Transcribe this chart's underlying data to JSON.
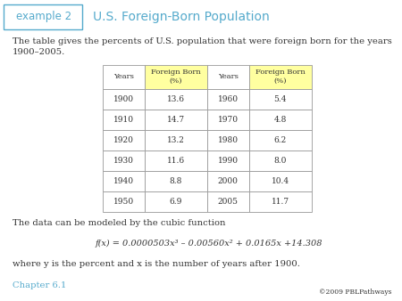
{
  "title": "U.S. Foreign-Born Population",
  "example_label": "example 2",
  "intro_text": "The table gives the percents of U.S. population that were foreign born for the years\n1900–2005.",
  "table_headers": [
    "Years",
    "Foreign Born\n(%)",
    "Years",
    "Foreign Born\n(%)"
  ],
  "table_data": [
    [
      "1900",
      "13.6",
      "1960",
      "5.4"
    ],
    [
      "1910",
      "14.7",
      "1970",
      "4.8"
    ],
    [
      "1920",
      "13.2",
      "1980",
      "6.2"
    ],
    [
      "1930",
      "11.6",
      "1990",
      "8.0"
    ],
    [
      "1940",
      "8.8",
      "2000",
      "10.4"
    ],
    [
      "1950",
      "6.9",
      "2005",
      "11.7"
    ]
  ],
  "header_bg_color": "#FFFFA0",
  "table_border_color": "#999999",
  "cubic_text": "The data can be modeled by the cubic function",
  "formula": "f(x) = 0.0000503x³ – 0.00560x² + 0.0165x +14.308",
  "where_text": "where y is the percent and x is the number of years after 1900.",
  "chapter_text": "Chapter 6.1",
  "copyright_text": "©2009 PBLPathways",
  "bg_color": "#ffffff",
  "title_color": "#55AACC",
  "example_label_color": "#55AACC",
  "example_box_edge_color": "#55AACC",
  "chapter_color": "#55AACC",
  "text_color": "#333333"
}
